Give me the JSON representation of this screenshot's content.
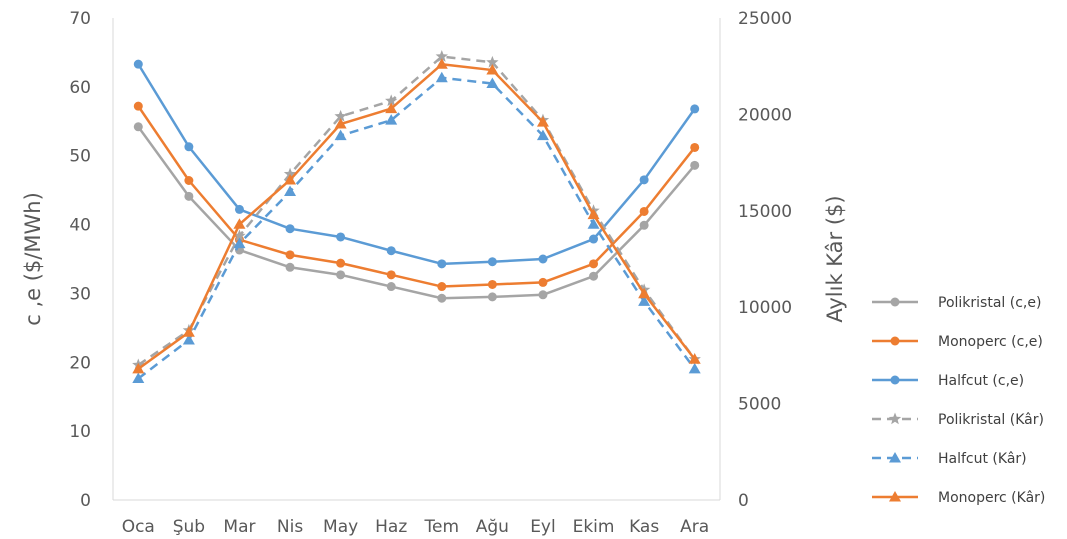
{
  "chart_data": {
    "type": "line",
    "title": "",
    "categories": [
      "Oca",
      "Şub",
      "Mar",
      "Nis",
      "May",
      "Haz",
      "Tem",
      "Ağu",
      "Eyl",
      "Ekim",
      "Kas",
      "Ara"
    ],
    "y_left": {
      "label": "c ,e ($/MWh)",
      "min": 0,
      "max": 70,
      "ticks": [
        0,
        10,
        20,
        30,
        40,
        50,
        60,
        70
      ]
    },
    "y_right": {
      "label": "Aylık Kâr ($)",
      "min": 0,
      "max": 25000,
      "ticks": [
        0,
        5000,
        10000,
        15000,
        20000,
        25000
      ]
    },
    "grid": false,
    "legend_position": "right",
    "series": [
      {
        "name": "Polikristal (c,e)",
        "axis": "left",
        "color": "#A5A5A5",
        "dash": "solid",
        "marker": "circle",
        "values": [
          54.2,
          44.1,
          36.3,
          33.8,
          32.7,
          31.0,
          29.3,
          29.5,
          29.8,
          32.5,
          39.9,
          48.6
        ]
      },
      {
        "name": "Monoperc (c,e)",
        "axis": "left",
        "color": "#ED7D31",
        "dash": "solid",
        "marker": "circle",
        "values": [
          57.2,
          46.4,
          37.8,
          35.6,
          34.4,
          32.7,
          31.0,
          31.3,
          31.6,
          34.3,
          41.9,
          51.2
        ]
      },
      {
        "name": "Halfcut (c,e)",
        "axis": "left",
        "color": "#5B9BD5",
        "dash": "solid",
        "marker": "circle",
        "values": [
          63.3,
          51.3,
          42.2,
          39.4,
          38.2,
          36.2,
          34.3,
          34.6,
          35.0,
          37.9,
          46.5,
          56.8
        ]
      },
      {
        "name": "Polikristal (Kâr)",
        "axis": "right",
        "color": "#A5A5A5",
        "dash": "dashed",
        "marker": "star",
        "values": [
          7000,
          8800,
          13700,
          16900,
          19900,
          20700,
          23000,
          22700,
          19700,
          15000,
          10900,
          7300
        ]
      },
      {
        "name": "Halfcut (Kâr)",
        "axis": "right",
        "color": "#5B9BD5",
        "dash": "dashed",
        "marker": "triangle",
        "values": [
          6300,
          8300,
          13300,
          16000,
          18900,
          19700,
          21900,
          21600,
          18900,
          14300,
          10300,
          6800
        ]
      },
      {
        "name": "Monoperc (Kâr)",
        "axis": "right",
        "color": "#ED7D31",
        "dash": "solid",
        "marker": "triangle",
        "values": [
          6800,
          8700,
          14300,
          16600,
          19500,
          20300,
          22600,
          22300,
          19600,
          14800,
          10700,
          7300
        ]
      }
    ]
  }
}
